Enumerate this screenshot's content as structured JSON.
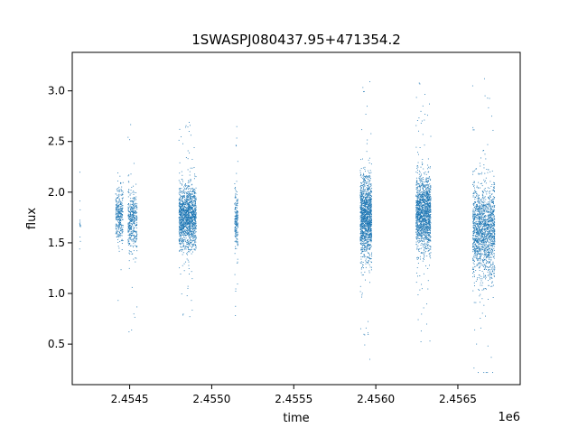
{
  "chart_data": {
    "type": "scatter",
    "title": "1SWASPJ080437.95+471354.2",
    "xlabel": "time",
    "ylabel": "flux",
    "x_offset_label": "1e6",
    "xlim": [
      2454150,
      2456880
    ],
    "ylim": [
      0.1,
      3.38
    ],
    "x_ticks": [
      2454500,
      2455000,
      2455500,
      2456000,
      2456500
    ],
    "x_tick_labels": [
      "2.4545",
      "2.4550",
      "2.4555",
      "2.4560",
      "2.4565"
    ],
    "y_ticks": [
      0.5,
      1.0,
      1.5,
      2.0,
      2.5,
      3.0
    ],
    "y_tick_labels": [
      "0.5",
      "1.0",
      "1.5",
      "2.0",
      "2.5",
      "3.0"
    ],
    "grid": false,
    "marker_color": "#1f77b4",
    "series": [
      {
        "clusters": [
          {
            "x_start": 2454195,
            "x_end": 2454200,
            "y_center": 1.75,
            "y_spread": 0.25,
            "points": 15
          },
          {
            "x_start": 2454415,
            "x_end": 2454460,
            "y_center": 1.78,
            "y_spread": 0.3,
            "points": 320
          },
          {
            "x_start": 2454490,
            "x_end": 2454545,
            "y_center": 1.72,
            "y_spread": 0.35,
            "points": 420
          },
          {
            "x_start": 2454800,
            "x_end": 2454905,
            "y_center": 1.75,
            "y_spread": 0.35,
            "points": 1500
          },
          {
            "x_start": 2455140,
            "x_end": 2455160,
            "y_center": 1.72,
            "y_spread": 0.3,
            "points": 200
          },
          {
            "x_start": 2455905,
            "x_end": 2455975,
            "y_center": 1.75,
            "y_spread": 0.45,
            "points": 1400
          },
          {
            "x_start": 2456245,
            "x_end": 2456335,
            "y_center": 1.8,
            "y_spread": 0.4,
            "points": 1500
          },
          {
            "x_start": 2456590,
            "x_end": 2456725,
            "y_center": 1.62,
            "y_spread": 0.5,
            "points": 1600
          }
        ]
      }
    ]
  }
}
